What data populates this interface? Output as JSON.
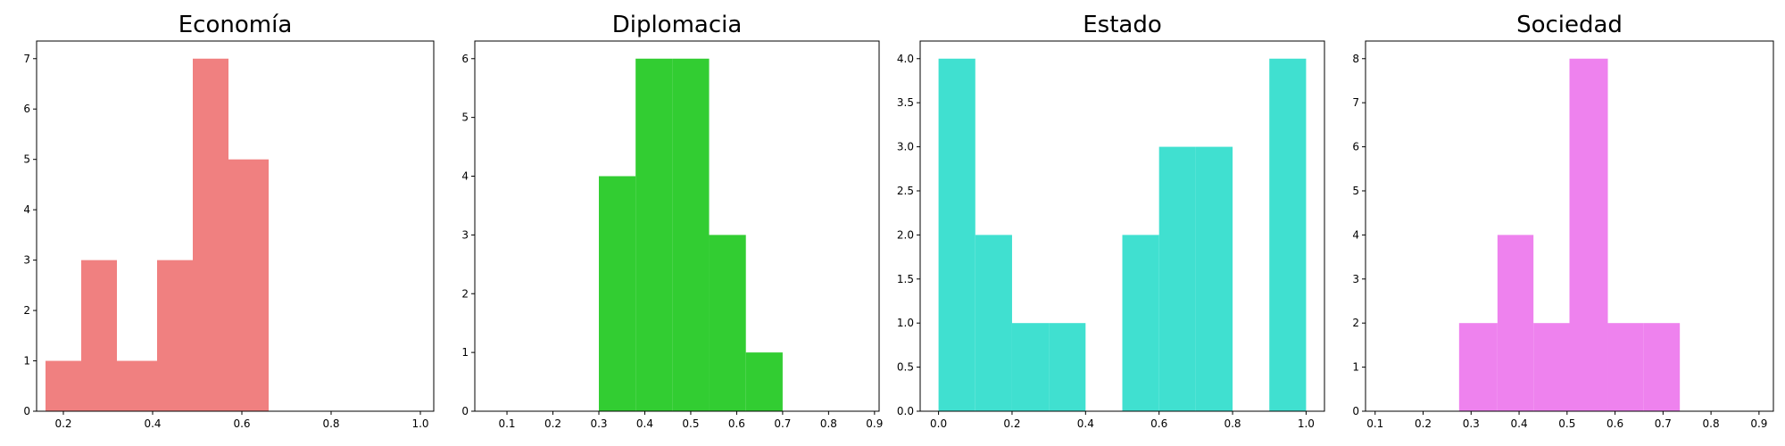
{
  "chart_data": [
    {
      "type": "bar",
      "title": "Economía",
      "color": "#f08080",
      "bins": [
        {
          "x0": 0.16,
          "x1": 0.24,
          "count": 1
        },
        {
          "x0": 0.24,
          "x1": 0.32,
          "count": 3
        },
        {
          "x0": 0.32,
          "x1": 0.41,
          "count": 1
        },
        {
          "x0": 0.41,
          "x1": 0.49,
          "count": 3
        },
        {
          "x0": 0.49,
          "x1": 0.57,
          "count": 7
        },
        {
          "x0": 0.57,
          "x1": 0.66,
          "count": 5
        }
      ],
      "xlim": [
        0.14,
        1.03
      ],
      "ylim": [
        0,
        7.35
      ],
      "xticks": [
        0.2,
        0.4,
        0.6,
        0.8,
        1.0
      ],
      "xtick_labels": [
        "0.2",
        "0.4",
        "0.6",
        "0.8",
        "1.0"
      ],
      "yticks": [
        0,
        1,
        2,
        3,
        4,
        5,
        6,
        7
      ],
      "ytick_labels": [
        "0",
        "1",
        "2",
        "3",
        "4",
        "5",
        "6",
        "7"
      ]
    },
    {
      "type": "bar",
      "title": "Diplomacia",
      "color": "#32cd32",
      "bins": [
        {
          "x0": 0.3,
          "x1": 0.38,
          "count": 4
        },
        {
          "x0": 0.38,
          "x1": 0.46,
          "count": 6
        },
        {
          "x0": 0.46,
          "x1": 0.54,
          "count": 6
        },
        {
          "x0": 0.54,
          "x1": 0.62,
          "count": 3
        },
        {
          "x0": 0.62,
          "x1": 0.7,
          "count": 1
        }
      ],
      "xlim": [
        0.03,
        0.91
      ],
      "ylim": [
        0,
        6.3
      ],
      "xticks": [
        0.1,
        0.2,
        0.3,
        0.4,
        0.5,
        0.6,
        0.7,
        0.8,
        0.9
      ],
      "xtick_labels": [
        "0.1",
        "0.2",
        "0.3",
        "0.4",
        "0.5",
        "0.6",
        "0.7",
        "0.8",
        "0.9"
      ],
      "yticks": [
        0,
        1,
        2,
        3,
        4,
        5,
        6
      ],
      "ytick_labels": [
        "0",
        "1",
        "2",
        "3",
        "4",
        "5",
        "6"
      ]
    },
    {
      "type": "bar",
      "title": "Estado",
      "color": "#40e0d0",
      "bins": [
        {
          "x0": 0.0,
          "x1": 0.1,
          "count": 4
        },
        {
          "x0": 0.1,
          "x1": 0.2,
          "count": 2
        },
        {
          "x0": 0.2,
          "x1": 0.3,
          "count": 1
        },
        {
          "x0": 0.3,
          "x1": 0.4,
          "count": 1
        },
        {
          "x0": 0.4,
          "x1": 0.5,
          "count": 0
        },
        {
          "x0": 0.5,
          "x1": 0.6,
          "count": 2
        },
        {
          "x0": 0.6,
          "x1": 0.7,
          "count": 3
        },
        {
          "x0": 0.7,
          "x1": 0.8,
          "count": 3
        },
        {
          "x0": 0.8,
          "x1": 0.9,
          "count": 0
        },
        {
          "x0": 0.9,
          "x1": 1.0,
          "count": 4
        }
      ],
      "xlim": [
        -0.05,
        1.05
      ],
      "ylim": [
        0,
        4.2
      ],
      "xticks": [
        0.0,
        0.2,
        0.4,
        0.6,
        0.8,
        1.0
      ],
      "xtick_labels": [
        "0.0",
        "0.2",
        "0.4",
        "0.6",
        "0.8",
        "1.0"
      ],
      "yticks": [
        0,
        0.5,
        1,
        1.5,
        2,
        2.5,
        3,
        3.5,
        4
      ],
      "ytick_labels": [
        "0.0",
        "0.5",
        "1.0",
        "1.5",
        "2.0",
        "2.5",
        "3.0",
        "3.5",
        "4.0"
      ]
    },
    {
      "type": "bar",
      "title": "Sociedad",
      "color": "#ee82ee",
      "bins": [
        {
          "x0": 0.275,
          "x1": 0.355,
          "count": 2
        },
        {
          "x0": 0.355,
          "x1": 0.43,
          "count": 4
        },
        {
          "x0": 0.43,
          "x1": 0.505,
          "count": 2
        },
        {
          "x0": 0.505,
          "x1": 0.585,
          "count": 8
        },
        {
          "x0": 0.585,
          "x1": 0.66,
          "count": 2
        },
        {
          "x0": 0.66,
          "x1": 0.735,
          "count": 2
        }
      ],
      "xlim": [
        0.08,
        0.93
      ],
      "ylim": [
        0,
        8.4
      ],
      "xticks": [
        0.1,
        0.2,
        0.3,
        0.4,
        0.5,
        0.6,
        0.7,
        0.8,
        0.9
      ],
      "xtick_labels": [
        "0.1",
        "0.2",
        "0.3",
        "0.4",
        "0.5",
        "0.6",
        "0.7",
        "0.8",
        "0.9"
      ],
      "yticks": [
        0,
        1,
        2,
        3,
        4,
        5,
        6,
        7,
        8
      ],
      "ytick_labels": [
        "0",
        "1",
        "2",
        "3",
        "4",
        "5",
        "6",
        "7",
        "8"
      ]
    }
  ]
}
